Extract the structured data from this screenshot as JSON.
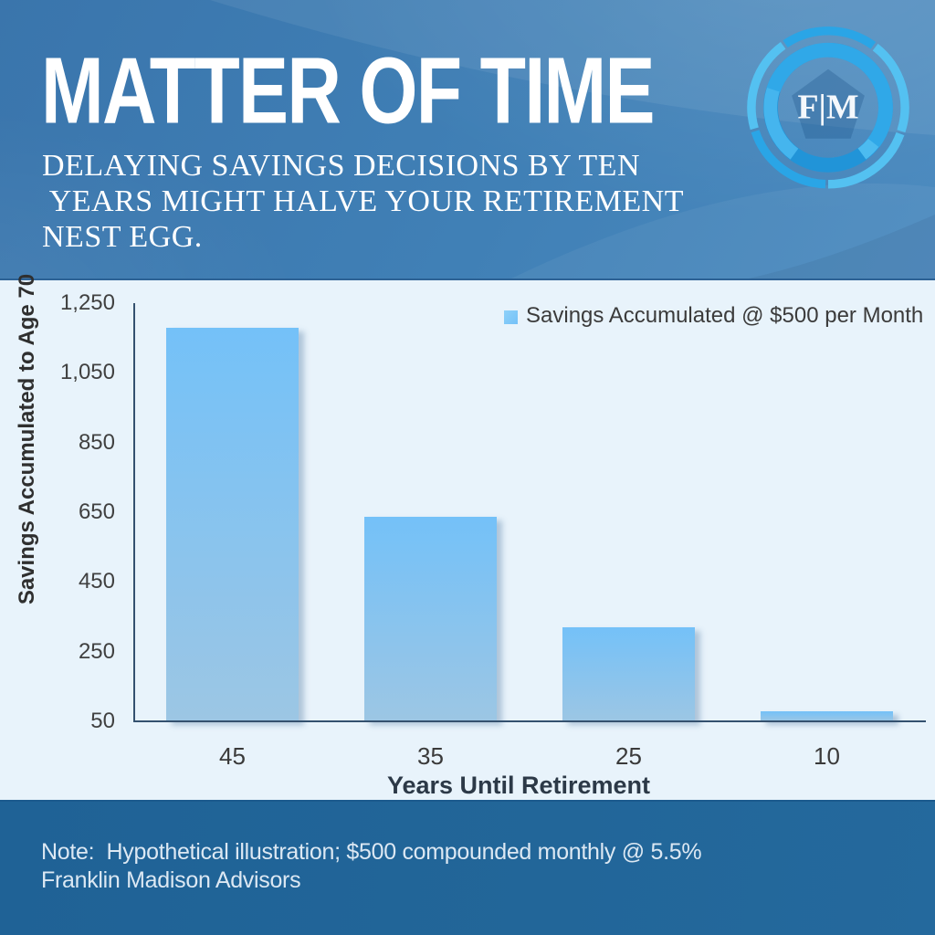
{
  "header": {
    "title": "MATTER OF TIME",
    "subtitle_lines": [
      "DELAYING SAVINGS DECISIONS BY TEN",
      " YEARS MIGHT HALVE YOUR RETIREMENT",
      "NEST EGG."
    ],
    "logo_monogram": "F|M"
  },
  "chart_data": {
    "type": "bar",
    "title": "",
    "categories": [
      "45",
      "35",
      "25",
      "10"
    ],
    "values": [
      1180,
      636,
      321,
      80
    ],
    "series": [
      {
        "name": "Savings Accumulated @ $500 per Month",
        "values": [
          1180,
          636,
          321,
          80
        ]
      }
    ],
    "legend_label": "Savings Accumulated @ $500 per Month",
    "xlabel": "Years Until Retirement",
    "ylabel": "Savings Accumulated to Age 70",
    "ylim": [
      50,
      1250
    ],
    "yticks": [
      50,
      250,
      450,
      650,
      850,
      1050,
      1250
    ],
    "grid": false,
    "legend_position": "top-right",
    "bar_color_top": "#74c1f8",
    "bar_color_bottom": "#9cc6e4",
    "axis_color": "#34516f",
    "plot_background": "#e8f3fb"
  },
  "footer": {
    "note_line1": "Note:  Hypothetical illustration; $500 compounded monthly @ 5.5%",
    "note_line2": "Franklin Madison Advisors"
  },
  "colors": {
    "header_blue": "#3e7cb3",
    "footer_blue": "#21669a",
    "logo_ribbon_dark": "#239ade",
    "logo_ribbon_light": "#54c1f1"
  }
}
